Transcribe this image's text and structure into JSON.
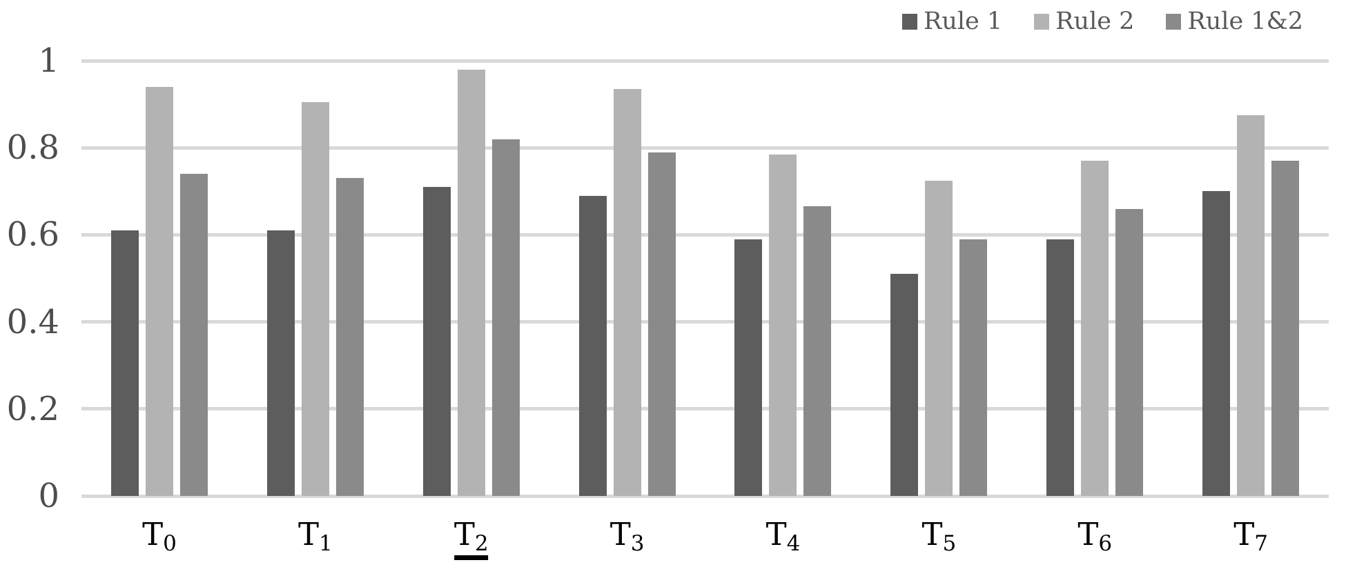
{
  "chart_data": {
    "type": "bar",
    "title": "",
    "xlabel": "",
    "ylabel": "",
    "categories": [
      "T0",
      "T1",
      "T2",
      "T3",
      "T4",
      "T5",
      "T6",
      "T7"
    ],
    "category_parts": [
      {
        "base": "T",
        "sub": "0",
        "underlined": false
      },
      {
        "base": "T",
        "sub": "1",
        "underlined": false
      },
      {
        "base": "T",
        "sub": "2",
        "underlined": true
      },
      {
        "base": "T",
        "sub": "3",
        "underlined": false
      },
      {
        "base": "T",
        "sub": "4",
        "underlined": false
      },
      {
        "base": "T",
        "sub": "5",
        "underlined": false
      },
      {
        "base": "T",
        "sub": "6",
        "underlined": false
      },
      {
        "base": "T",
        "sub": "7",
        "underlined": false
      }
    ],
    "underlined_category": "T2",
    "series": [
      {
        "name": "Rule 1",
        "color": "#5d5d5d",
        "values": [
          0.61,
          0.61,
          0.71,
          0.69,
          0.59,
          0.51,
          0.59,
          0.7
        ]
      },
      {
        "name": "Rule 2",
        "color": "#b3b3b3",
        "values": [
          0.94,
          0.905,
          0.98,
          0.935,
          0.785,
          0.725,
          0.77,
          0.875
        ]
      },
      {
        "name": "Rule 1&2",
        "color": "#8a8a8a",
        "values": [
          0.74,
          0.73,
          0.82,
          0.79,
          0.665,
          0.59,
          0.66,
          0.77
        ]
      }
    ],
    "y_axis": {
      "min": 0,
      "max": 1,
      "tick_interval": 0.2,
      "tick_labels": [
        "0",
        "0.2",
        "0.4",
        "0.6",
        "0.8",
        "1"
      ]
    },
    "legend_position": "top-right",
    "grid": true,
    "colors": {
      "gridline": "#d9d9d9",
      "y_tick_label": "#4d4d4d",
      "category_label": "#000000",
      "legend_text": "#595959",
      "background": "#ffffff"
    }
  }
}
